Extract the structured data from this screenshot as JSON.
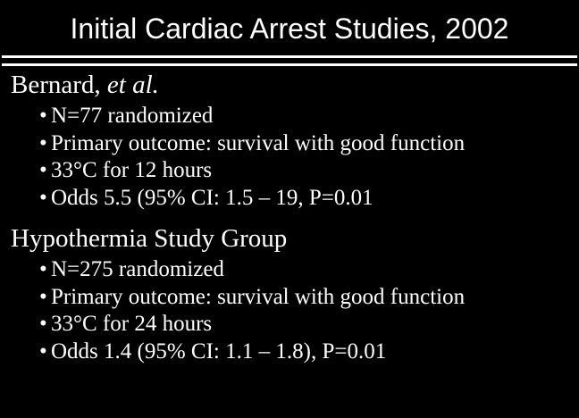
{
  "slide": {
    "title": "Initial Cardiac Arrest Studies, 2002",
    "bullet_char": "•",
    "colors": {
      "background": "#000000",
      "text": "#ffffff",
      "rule": "#ffffff"
    },
    "sections": [
      {
        "heading_main": "Bernard,",
        "heading_italic": " et al.",
        "bullets": [
          "N=77 randomized",
          "Primary outcome: survival with good function",
          "33°C for 12 hours",
          "Odds 5.5 (95% CI: 1.5 – 19, P=0.01"
        ]
      },
      {
        "heading_main": "Hypothermia Study Group",
        "heading_italic": "",
        "bullets": [
          "N=275 randomized",
          "Primary outcome: survival with good function",
          "33°C for 24 hours",
          "Odds 1.4 (95% CI: 1.1 – 1.8), P=0.01"
        ]
      }
    ]
  }
}
